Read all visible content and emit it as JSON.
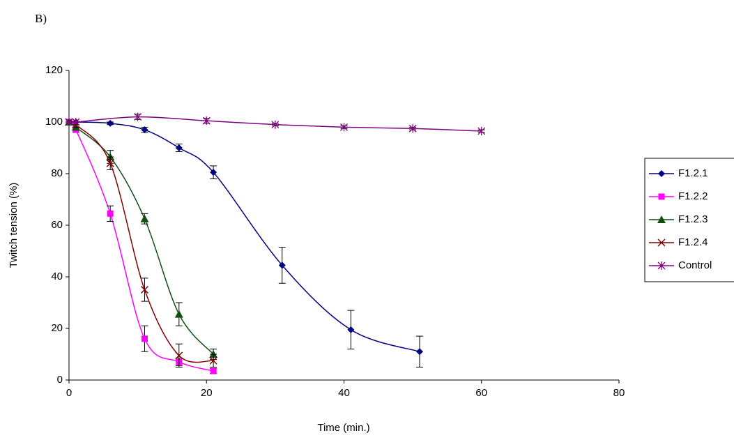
{
  "chart_data": {
    "type": "line",
    "panel_label": "B)",
    "x_label": "Time (min.)",
    "y_label": "Twitch tension (%)",
    "xlim": [
      0,
      80
    ],
    "xticks": [
      0,
      20,
      40,
      60,
      80
    ],
    "ylim": [
      0,
      120
    ],
    "yticks": [
      0,
      20,
      40,
      60,
      80,
      100,
      120
    ],
    "legend": "right",
    "series": [
      {
        "name": "F1.2.1",
        "color": "#000080",
        "marker": "diamond",
        "x": [
          0,
          1,
          6,
          11,
          16,
          21,
          31,
          41,
          51
        ],
        "values": [
          100,
          100,
          99.5,
          97,
          90,
          80.5,
          44.5,
          19.5,
          11
        ],
        "errors": [
          0,
          0,
          0.5,
          1,
          1.5,
          2.5,
          7,
          7.5,
          6
        ]
      },
      {
        "name": "F1.2.2",
        "color": "#ff00ff",
        "marker": "square",
        "x": [
          0,
          1,
          6,
          11,
          16,
          21
        ],
        "values": [
          100,
          97,
          64.5,
          16,
          7,
          3.5
        ],
        "errors": [
          0,
          1,
          3,
          5,
          1.5,
          1
        ]
      },
      {
        "name": "F1.2.3",
        "color": "#0f4f0f",
        "marker": "triangle",
        "x": [
          0,
          1,
          6,
          11,
          16,
          21
        ],
        "values": [
          100,
          98,
          86.5,
          62.5,
          25.5,
          10
        ],
        "errors": [
          0,
          1,
          2.5,
          2,
          4.5,
          2
        ]
      },
      {
        "name": "F1.2.4",
        "color": "#800000",
        "marker": "x",
        "x": [
          0,
          1,
          6,
          11,
          16,
          21
        ],
        "values": [
          100,
          99,
          84,
          35,
          9.5,
          7.5
        ],
        "errors": [
          0,
          1,
          2.5,
          4.5,
          4.5,
          2.5
        ]
      },
      {
        "name": "Control",
        "color": "#800080",
        "marker": "star",
        "x": [
          0,
          1,
          10,
          20,
          30,
          40,
          50,
          60
        ],
        "values": [
          100,
          100,
          102,
          100.5,
          99,
          98,
          97.5,
          96.5
        ],
        "errors": [
          0,
          0,
          1,
          1,
          0.5,
          0.5,
          0.5,
          0.5
        ]
      }
    ]
  }
}
